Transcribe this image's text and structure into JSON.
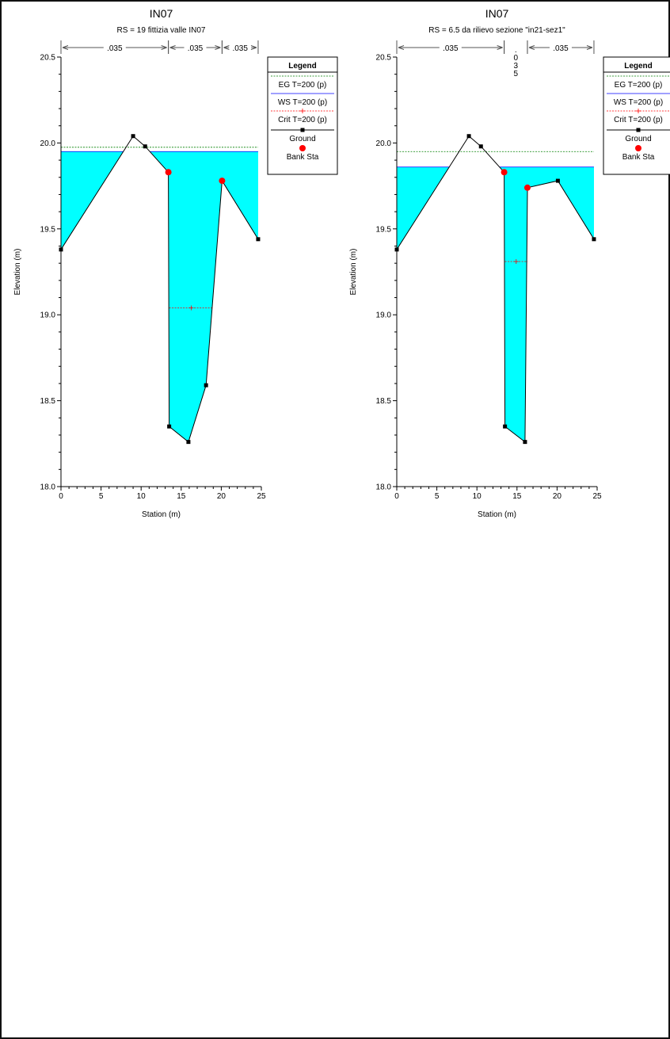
{
  "chart_data": [
    {
      "type": "area",
      "title": "IN07",
      "subtitle": "RS = 19    fittizia valle IN07",
      "xlabel": "Station (m)",
      "ylabel": "Elevation (m)",
      "xlim": [
        0,
        25
      ],
      "ylim": [
        18.0,
        20.5
      ],
      "x_ticks": [
        "0",
        "5",
        "10",
        "15",
        "20",
        "25"
      ],
      "y_ticks": [
        "18.0",
        "18.5",
        "19.0",
        "19.5",
        "20.0",
        "20.5"
      ],
      "series": [
        {
          "name": "EG T=200 (p)",
          "y": 19.975
        },
        {
          "name": "WS T=200 (p)",
          "y": 19.95
        },
        {
          "name": "Crit T=200 (p)",
          "x": [
            13.5,
            19.0
          ],
          "y": 19.04
        },
        {
          "name": "Ground",
          "x": [
            0,
            9,
            10.5,
            13.4,
            13.5,
            15.9,
            18.1,
            20.1,
            24.6
          ],
          "y": [
            19.38,
            20.04,
            19.98,
            19.83,
            18.35,
            18.26,
            18.59,
            19.78,
            19.44
          ]
        },
        {
          "name": "Bank Sta",
          "x": [
            13.4,
            20.1
          ],
          "y": [
            19.83,
            19.78
          ]
        }
      ],
      "manning": [
        {
          "label": ".035",
          "from": 0,
          "to": 13.4
        },
        {
          "label": ".035",
          "from": 13.4,
          "to": 20.1
        },
        {
          "label": ".035",
          "from": 20.1,
          "to": 24.6
        }
      ],
      "legend": {
        "title": "Legend",
        "placement": "top-right",
        "entries": [
          "EG T=200 (p)",
          "WS T=200 (p)",
          "Crit T=200 (p)",
          "Ground",
          "Bank Sta"
        ]
      }
    },
    {
      "type": "area",
      "title": "IN07",
      "subtitle": "RS = 6.5    da rilievo sezione \"in21-sez1\"",
      "xlabel": "Station (m)",
      "ylabel": "Elevation (m)",
      "xlim": [
        0,
        25
      ],
      "ylim": [
        18.0,
        20.5
      ],
      "x_ticks": [
        "0",
        "5",
        "10",
        "15",
        "20",
        "25"
      ],
      "y_ticks": [
        "18.0",
        "18.5",
        "19.0",
        "19.5",
        "20.0",
        "20.5"
      ],
      "series": [
        {
          "name": "EG T=200 (p)",
          "y": 19.95
        },
        {
          "name": "WS T=200 (p)",
          "y": 19.86
        },
        {
          "name": "Crit T=200 (p)",
          "x": [
            13.5,
            16.3
          ],
          "y": 19.31
        },
        {
          "name": "Ground",
          "x": [
            0,
            9,
            10.5,
            13.4,
            13.5,
            16.0,
            16.3,
            20.1,
            24.6
          ],
          "y": [
            19.38,
            20.04,
            19.98,
            19.83,
            18.35,
            18.26,
            19.74,
            19.78,
            19.44
          ]
        },
        {
          "name": "Bank Sta",
          "x": [
            13.4,
            16.3
          ],
          "y": [
            19.83,
            19.74
          ]
        }
      ],
      "manning": [
        {
          "label": ".035",
          "from": 0,
          "to": 13.4
        },
        {
          "label": ".035",
          "from": 13.4,
          "to": 16.3,
          "vertical": true
        },
        {
          "label": ".035",
          "from": 16.3,
          "to": 24.6
        }
      ],
      "legend": {
        "title": "Legend",
        "placement": "top-right",
        "entries": [
          "EG T=200 (p)",
          "WS T=200 (p)",
          "Crit T=200 (p)",
          "Ground",
          "Bank Sta"
        ]
      }
    }
  ],
  "colors": {
    "water": "#00ffff",
    "ground": "#000000",
    "eg_line": "#008000",
    "ws_line": "#0000ff",
    "crit_line": "#ff0000",
    "bank": "#ff0000"
  }
}
